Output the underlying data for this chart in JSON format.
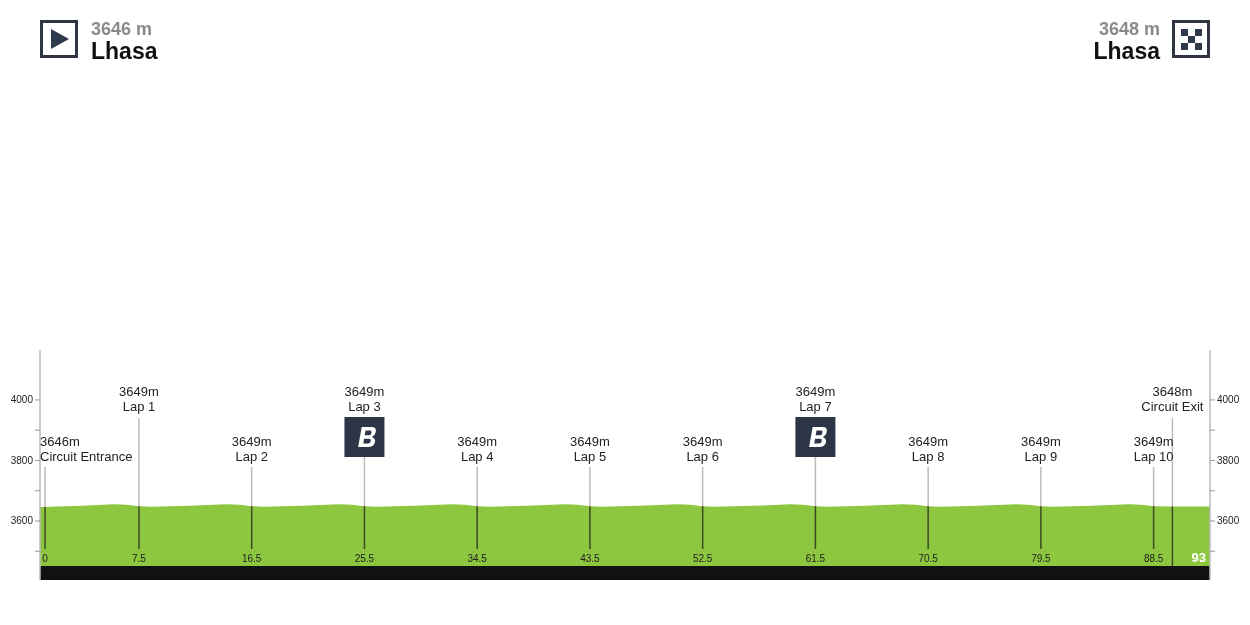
{
  "chart_data": {
    "type": "area",
    "series": [
      {
        "color": "#8dc63f",
        "x": [
          -0.4,
          0,
          1,
          3,
          5.5,
          6.5,
          7.5,
          8.5,
          11.5,
          14.5,
          15.5,
          16.5,
          17.5,
          20.5,
          23.5,
          24.5,
          25.5,
          26.5,
          29.5,
          32.5,
          33.5,
          34.5,
          35.5,
          38.5,
          41.5,
          42.5,
          43.5,
          44.5,
          47.5,
          50.5,
          51.5,
          52.5,
          53.5,
          56.5,
          59.5,
          60.5,
          61.5,
          62.5,
          65.5,
          68.5,
          69.5,
          70.5,
          71.5,
          74.5,
          77.5,
          78.5,
          79.5,
          80.5,
          83.5,
          86.5,
          87.5,
          88.5,
          90,
          93
        ],
        "values": [
          3646,
          3646,
          3648,
          3650,
          3655,
          3654,
          3649,
          3647,
          3650,
          3655,
          3654,
          3649,
          3647,
          3650,
          3655,
          3654,
          3649,
          3647,
          3650,
          3655,
          3654,
          3649,
          3647,
          3650,
          3655,
          3654,
          3649,
          3647,
          3650,
          3655,
          3654,
          3649,
          3647,
          3650,
          3655,
          3654,
          3649,
          3647,
          3650,
          3655,
          3654,
          3649,
          3647,
          3650,
          3655,
          3654,
          3649,
          3647,
          3650,
          3655,
          3654,
          3649,
          3648,
          3648
        ]
      }
    ],
    "xlim": [
      -0.4,
      93
    ],
    "xticks": [
      0,
      7.5,
      16.5,
      25.5,
      34.5,
      43.5,
      52.5,
      61.5,
      70.5,
      79.5,
      88.5
    ],
    "ylim": [
      3405,
      4165
    ],
    "yticks": [
      {
        "value": 3500,
        "label": null
      },
      3600,
      {
        "value": 3700,
        "label": null
      },
      3800,
      {
        "value": 3900,
        "label": null
      },
      4000
    ],
    "y2lim": [
      3405,
      4165
    ],
    "y2ticks": [
      {
        "value": 3500,
        "label": null
      },
      3600,
      {
        "value": 3700,
        "label": null
      },
      3800,
      {
        "value": 3900,
        "label": null
      },
      4000
    ],
    "ref_lines": [
      {
        "axis": "x",
        "value": 0,
        "color": "#3b4a22"
      },
      {
        "axis": "x",
        "value": 7.5,
        "color": "#3b4a22"
      },
      {
        "axis": "x",
        "value": 16.5,
        "color": "#3b4a22"
      },
      {
        "axis": "x",
        "value": 25.5,
        "color": "#3b4a22"
      },
      {
        "axis": "x",
        "value": 34.5,
        "color": "#3b4a22"
      },
      {
        "axis": "x",
        "value": 43.5,
        "color": "#3b4a22"
      },
      {
        "axis": "x",
        "value": 52.5,
        "color": "#3b4a22"
      },
      {
        "axis": "x",
        "value": 61.5,
        "color": "#3b4a22"
      },
      {
        "axis": "x",
        "value": 70.5,
        "color": "#3b4a22"
      },
      {
        "axis": "x",
        "value": 79.5,
        "color": "#3b4a22"
      },
      {
        "axis": "x",
        "value": 88.5,
        "color": "#3b4a22"
      },
      {
        "axis": "x",
        "value": 90,
        "color": "#3b4a22"
      }
    ],
    "annotations": [
      "3646 m",
      "Lhasa",
      "3648 m",
      "Lhasa",
      "93",
      {
        "text": "3646m\nCircuit Entrance",
        "x": 0,
        "y": 3646
      },
      {
        "text": "3649m\nLap 1",
        "x": 7.5,
        "y": 3649
      },
      {
        "text": "3649m\nLap 2",
        "x": 16.5,
        "y": 3649
      },
      {
        "text": "3649m\nLap 3",
        "x": 25.5,
        "y": 3649
      },
      {
        "text": "3649m\nLap 4",
        "x": 34.5,
        "y": 3649
      },
      {
        "text": "3649m\nLap 5",
        "x": 43.5,
        "y": 3649
      },
      {
        "text": "3649m\nLap 6",
        "x": 52.5,
        "y": 3649
      },
      {
        "text": "3649m\nLap 7",
        "x": 61.5,
        "y": 3649
      },
      {
        "text": "3649m\nLap 8",
        "x": 70.5,
        "y": 3649
      },
      {
        "text": "3649m\nLap 9",
        "x": 79.5,
        "y": 3649
      },
      {
        "text": "3649m\nLap 10",
        "x": 88.5,
        "y": 3649
      },
      {
        "text": "3648m\nCircuit Exit",
        "x": 90,
        "y": 3648
      }
    ]
  }
}
